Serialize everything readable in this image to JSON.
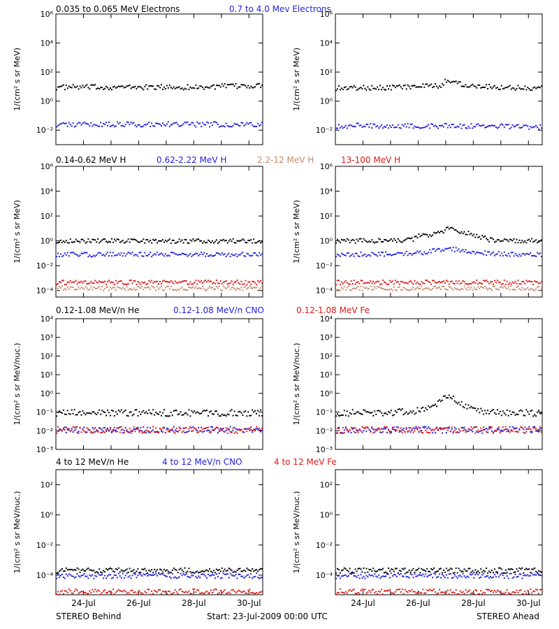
{
  "colors": {
    "black": "#000000",
    "blue": "#1f1fe0",
    "tan": "#c58a6e",
    "red": "#e01818"
  },
  "titles": {
    "row1": [
      "0.035 to 0.065 MeV Electrons",
      "0.7 to 4.0 Mev Electrons"
    ],
    "row2": [
      "0.14-0.62 MeV H",
      "0.62-2.22 MeV H",
      "2.2-12 MeV H",
      "13-100 MeV H"
    ],
    "row3": [
      "0.12-1.08 MeV/n He",
      "0.12-1.08 MeV/n CNO",
      "0.12-1.08 MeV Fe"
    ],
    "row4": [
      "4 to 12 MeV/n He",
      "4 to 12 MeV/n CNO",
      "4 to 12 MeV Fe"
    ]
  },
  "footer": {
    "left": "STEREO Behind",
    "center": "Start: 23-Jul-2009 00:00 UTC",
    "right": "STEREO Ahead"
  },
  "chart_data": [
    {
      "type": "scatter",
      "panel": "row1-behind",
      "ylabel": "1/(cm² s sr MeV)",
      "yscale": "log",
      "ylim": [
        0.001,
        1000000
      ],
      "yticks": [
        "10⁻²",
        "10⁰",
        "10²",
        "10⁴",
        "10⁶"
      ],
      "ytick_values": [
        0.01,
        1,
        100,
        10000,
        1000000
      ],
      "xticks": [],
      "xlim_days": [
        0,
        7.5
      ],
      "series": [
        {
          "name": "0.035 to 0.065 MeV Electrons",
          "color": "black",
          "x": [
            0,
            1,
            2,
            3,
            4,
            5,
            6,
            7,
            7.5
          ],
          "y": [
            9,
            9,
            9,
            9,
            9,
            9,
            10,
            11,
            12
          ]
        },
        {
          "name": "0.7 to 4.0 Mev Electrons",
          "color": "blue",
          "x": [
            0,
            2,
            4,
            6,
            7.5
          ],
          "y": [
            0.025,
            0.025,
            0.025,
            0.025,
            0.025
          ]
        }
      ]
    },
    {
      "type": "scatter",
      "panel": "row1-ahead",
      "ylabel": "1/(cm² s sr MeV)",
      "yscale": "log",
      "ylim": [
        0.001,
        1000000
      ],
      "yticks": [
        "10⁻²",
        "10⁰",
        "10²",
        "10⁴",
        "10⁶"
      ],
      "ytick_values": [
        0.01,
        1,
        100,
        10000,
        1000000
      ],
      "xticks": [],
      "xlim_days": [
        0,
        7.5
      ],
      "series": [
        {
          "name": "0.035 to 0.065 MeV Electrons",
          "color": "black",
          "x": [
            0,
            1,
            2,
            3,
            3.9,
            4.0,
            4.2,
            4.6,
            5,
            6,
            7,
            7.5
          ],
          "y": [
            8,
            8,
            9,
            10,
            11,
            28,
            22,
            15,
            12,
            9,
            8,
            8
          ]
        },
        {
          "name": "0.7 to 4.0 Mev Electrons",
          "color": "blue",
          "x": [
            0,
            2,
            4,
            6,
            7.5
          ],
          "y": [
            0.02,
            0.02,
            0.02,
            0.018,
            0.017
          ]
        }
      ]
    },
    {
      "type": "scatter",
      "panel": "row2-behind",
      "ylabel": "1/(cm² s sr MeV)",
      "yscale": "log",
      "ylim": [
        3e-05,
        1000000
      ],
      "yticks": [
        "10⁻⁴",
        "10⁻²",
        "10⁰",
        "10²",
        "10⁴",
        "10⁶"
      ],
      "ytick_values": [
        0.0001,
        0.01,
        1,
        100,
        10000,
        1000000
      ],
      "xticks": [],
      "xlim_days": [
        0,
        7.5
      ],
      "series": [
        {
          "name": "0.14-0.62 MeV H",
          "color": "black",
          "x": [
            0,
            2,
            4,
            6,
            7.5
          ],
          "y": [
            1,
            1,
            0.95,
            0.95,
            1
          ]
        },
        {
          "name": "0.62-2.22 MeV H",
          "color": "blue",
          "x": [
            0,
            2,
            4,
            6,
            7.5
          ],
          "y": [
            0.08,
            0.08,
            0.08,
            0.08,
            0.08
          ]
        },
        {
          "name": "2.2-12 MeV H",
          "color": "tan",
          "x": [
            0,
            2,
            4,
            6,
            7.5
          ],
          "y": [
            0.00015,
            0.00015,
            0.00015,
            0.00015,
            0.00015
          ]
        },
        {
          "name": "13-100 MeV H",
          "color": "red",
          "x": [
            0,
            2,
            4,
            6,
            7.5
          ],
          "y": [
            0.00045,
            0.00045,
            0.00045,
            0.00045,
            0.00045
          ]
        }
      ]
    },
    {
      "type": "scatter",
      "panel": "row2-ahead",
      "ylabel": "1/(cm² s sr MeV)",
      "yscale": "log",
      "ylim": [
        3e-05,
        1000000
      ],
      "yticks": [
        "10⁻⁴",
        "10⁻²",
        "10⁰",
        "10²",
        "10⁴",
        "10⁶"
      ],
      "ytick_values": [
        0.0001,
        0.01,
        1,
        100,
        10000,
        1000000
      ],
      "xticks": [],
      "xlim_days": [
        0,
        7.5
      ],
      "series": [
        {
          "name": "0.14-0.62 MeV H",
          "color": "black",
          "x": [
            0,
            1,
            2,
            2.8,
            3.0,
            3.5,
            3.9,
            4.0,
            4.3,
            4.8,
            5.3,
            5.6,
            6,
            7,
            7.5
          ],
          "y": [
            1,
            1,
            1,
            1.2,
            2.5,
            3,
            5,
            10,
            8,
            4,
            2,
            1.2,
            1,
            1,
            1
          ]
        },
        {
          "name": "0.62-2.22 MeV H",
          "color": "blue",
          "x": [
            0,
            1,
            2,
            3,
            3.5,
            4.0,
            4.5,
            5,
            6,
            7,
            7.5
          ],
          "y": [
            0.08,
            0.08,
            0.09,
            0.1,
            0.15,
            0.25,
            0.18,
            0.12,
            0.09,
            0.08,
            0.08
          ]
        },
        {
          "name": "2.2-12 MeV H",
          "color": "tan",
          "x": [
            0,
            2,
            4,
            6,
            7.5
          ],
          "y": [
            0.00015,
            0.00015,
            0.00015,
            0.00015,
            0.00015
          ]
        },
        {
          "name": "13-100 MeV H",
          "color": "red",
          "x": [
            0,
            2,
            4,
            6,
            7.5
          ],
          "y": [
            0.00045,
            0.00045,
            0.00045,
            0.00045,
            0.00045
          ]
        }
      ]
    },
    {
      "type": "scatter",
      "panel": "row3-behind",
      "ylabel": "1/(cm² s sr MeV/nuc.)",
      "yscale": "log",
      "ylim": [
        0.001,
        10000
      ],
      "yticks": [
        "10⁻³",
        "10⁻²",
        "10⁻¹",
        "10⁰",
        "10¹",
        "10²",
        "10³",
        "10⁴"
      ],
      "ytick_values": [
        0.001,
        0.01,
        0.1,
        1,
        10,
        100,
        1000,
        10000
      ],
      "xticks": [],
      "xlim_days": [
        0,
        7.5
      ],
      "series": [
        {
          "name": "0.12-1.08 MeV/n He",
          "color": "black",
          "x": [
            0,
            2,
            4,
            6,
            7.5
          ],
          "y": [
            0.09,
            0.09,
            0.09,
            0.09,
            0.09
          ]
        },
        {
          "name": "0.12-1.08 MeV/n CNO",
          "color": "blue",
          "x": [
            0,
            2,
            4,
            6,
            7.5
          ],
          "y": [
            0.011,
            0.011,
            0.011,
            0.011,
            0.011
          ]
        },
        {
          "name": "0.12-1.08 MeV Fe",
          "color": "red",
          "x": [
            0,
            2,
            4,
            6,
            7.5
          ],
          "y": [
            0.011,
            0.011,
            0.011,
            0.011,
            0.011
          ]
        }
      ]
    },
    {
      "type": "scatter",
      "panel": "row3-ahead",
      "ylabel": "1/(cm² s sr MeV/nuc.)",
      "yscale": "log",
      "ylim": [
        0.001,
        10000
      ],
      "yticks": [
        "10⁻³",
        "10⁻²",
        "10⁻¹",
        "10⁰",
        "10¹",
        "10²",
        "10³",
        "10⁴"
      ],
      "ytick_values": [
        0.001,
        0.01,
        0.1,
        1,
        10,
        100,
        1000,
        10000
      ],
      "xticks": [],
      "xlim_days": [
        0,
        7.5
      ],
      "series": [
        {
          "name": "0.12-1.08 MeV/n He",
          "color": "black",
          "x": [
            0,
            2,
            3,
            3.5,
            3.9,
            4.1,
            4.5,
            5,
            6,
            7.5
          ],
          "y": [
            0.09,
            0.09,
            0.12,
            0.2,
            0.5,
            0.8,
            0.3,
            0.12,
            0.09,
            0.09
          ]
        },
        {
          "name": "0.12-1.08 MeV/n CNO",
          "color": "blue",
          "x": [
            0,
            2,
            4,
            6,
            7.5
          ],
          "y": [
            0.011,
            0.011,
            0.011,
            0.011,
            0.011
          ]
        },
        {
          "name": "0.12-1.08 MeV Fe",
          "color": "red",
          "x": [
            0,
            2,
            4,
            6,
            7.5
          ],
          "y": [
            0.011,
            0.011,
            0.011,
            0.011,
            0.011
          ]
        }
      ]
    },
    {
      "type": "scatter",
      "panel": "row4-behind",
      "ylabel": "1/(cm² s sr MeV/nuc.)",
      "yscale": "log",
      "ylim": [
        5e-06,
        1000
      ],
      "yticks": [
        "10⁻⁴",
        "10⁻²",
        "10⁰",
        "10²"
      ],
      "ytick_values": [
        0.0001,
        0.01,
        1,
        100
      ],
      "xticks": [
        "24-Jul",
        "26-Jul",
        "28-Jul",
        "30-Jul"
      ],
      "xtick_days": [
        1,
        3,
        5,
        7
      ],
      "xlim_days": [
        0,
        7.5
      ],
      "series": [
        {
          "name": "4 to 12 MeV/n He",
          "color": "black",
          "x": [
            0,
            2,
            4,
            6,
            7.5
          ],
          "y": [
            0.0002,
            0.0002,
            0.0002,
            0.0002,
            0.0002
          ]
        },
        {
          "name": "4 to 12 MeV/n CNO",
          "color": "blue",
          "x": [
            0,
            2,
            4,
            6,
            7.5
          ],
          "y": [
            9e-05,
            9e-05,
            9e-05,
            9e-05,
            9e-05
          ]
        },
        {
          "name": "4 to 12 MeV Fe",
          "color": "red",
          "x": [
            0,
            2,
            4,
            6,
            7.5
          ],
          "y": [
            8e-06,
            8e-06,
            8e-06,
            8e-06,
            8e-06
          ]
        }
      ]
    },
    {
      "type": "scatter",
      "panel": "row4-ahead",
      "ylabel": "1/(cm² s sr MeV/nuc.)",
      "yscale": "log",
      "ylim": [
        5e-06,
        1000
      ],
      "yticks": [
        "10⁻⁴",
        "10⁻²",
        "10⁰",
        "10²"
      ],
      "ytick_values": [
        0.0001,
        0.01,
        1,
        100
      ],
      "xticks": [
        "24-Jul",
        "26-Jul",
        "28-Jul",
        "30-Jul"
      ],
      "xtick_days": [
        1,
        3,
        5,
        7
      ],
      "xlim_days": [
        0,
        7.5
      ],
      "series": [
        {
          "name": "4 to 12 MeV/n He",
          "color": "black",
          "x": [
            0,
            2,
            4,
            6,
            7.5
          ],
          "y": [
            0.0002,
            0.0002,
            0.0002,
            0.0002,
            0.0002
          ]
        },
        {
          "name": "4 to 12 MeV/n CNO",
          "color": "blue",
          "x": [
            0,
            2,
            4,
            6,
            7.5
          ],
          "y": [
            9e-05,
            9e-05,
            9e-05,
            9e-05,
            9e-05
          ]
        },
        {
          "name": "4 to 12 MeV Fe",
          "color": "red",
          "x": [
            0,
            2,
            4,
            6,
            7.5
          ],
          "y": [
            8e-06,
            8e-06,
            8e-06,
            8e-06,
            8e-06
          ]
        }
      ]
    }
  ]
}
